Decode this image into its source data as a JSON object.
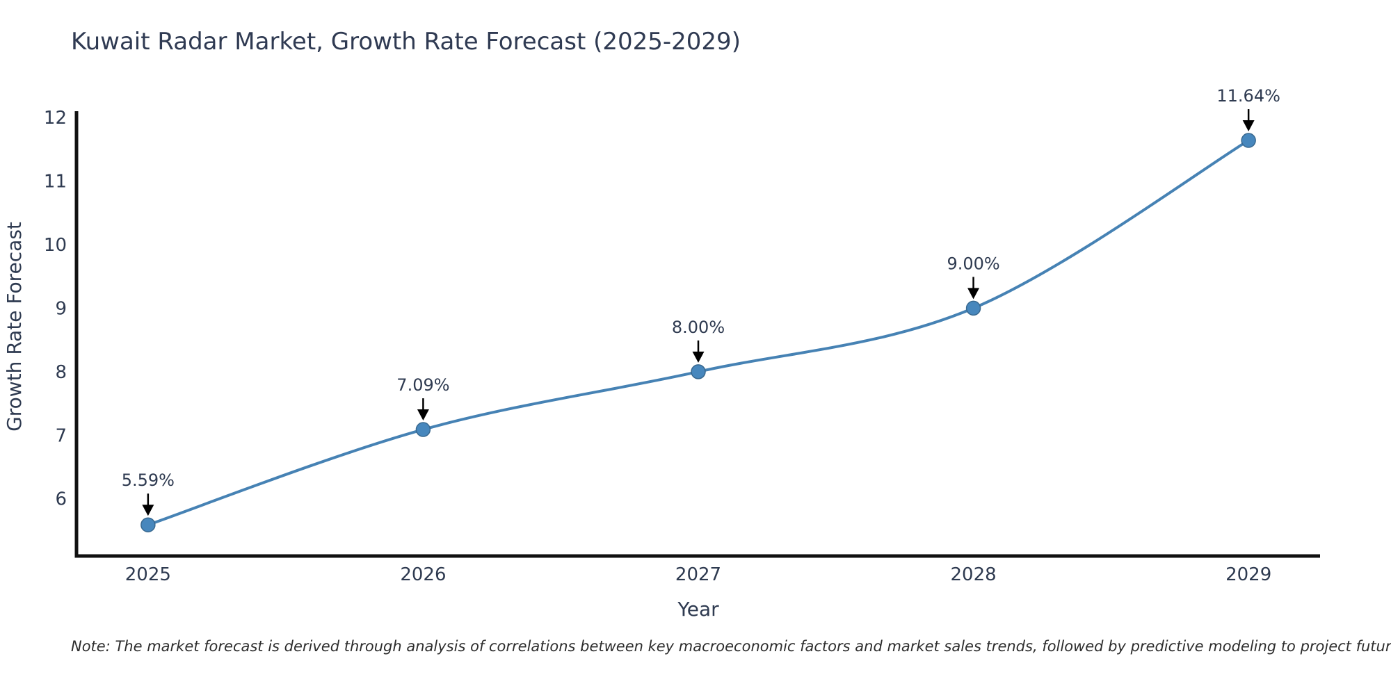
{
  "chart_data": {
    "type": "line",
    "title": "Kuwait Radar Market, Growth Rate Forecast (2025-2029)",
    "xlabel": "Year",
    "ylabel": "Growth Rate Forecast",
    "x": [
      2025,
      2026,
      2027,
      2028,
      2029
    ],
    "values": [
      5.59,
      7.09,
      8.0,
      9.0,
      11.64
    ],
    "point_labels": [
      "5.59%",
      "7.09%",
      "8.00%",
      "9.00%",
      "11.64%"
    ],
    "xticks": [
      2025,
      2026,
      2027,
      2028,
      2029
    ],
    "xtick_labels": [
      "2025",
      "2026",
      "2027",
      "2028",
      "2029"
    ],
    "yticks": [
      6,
      7,
      8,
      9,
      10,
      11,
      12
    ],
    "ytick_labels": [
      "6",
      "7",
      "8",
      "9",
      "10",
      "11",
      "12"
    ],
    "xlim": [
      2024.74,
      2029.26
    ],
    "ylim": [
      5.1,
      12.1
    ],
    "grid": false,
    "legend": "none",
    "line_shape": "spline",
    "colors": {
      "line": "#4682b4",
      "marker": "#4787bd",
      "marker_edge": "#38688f",
      "arrow": "#000000",
      "axis": "#111111",
      "text": "#2e3a50"
    }
  },
  "footnote": "Note: The market forecast is derived through analysis of correlations between key macroeconomic factors and market sales trends, followed by predictive modeling to project future sales."
}
